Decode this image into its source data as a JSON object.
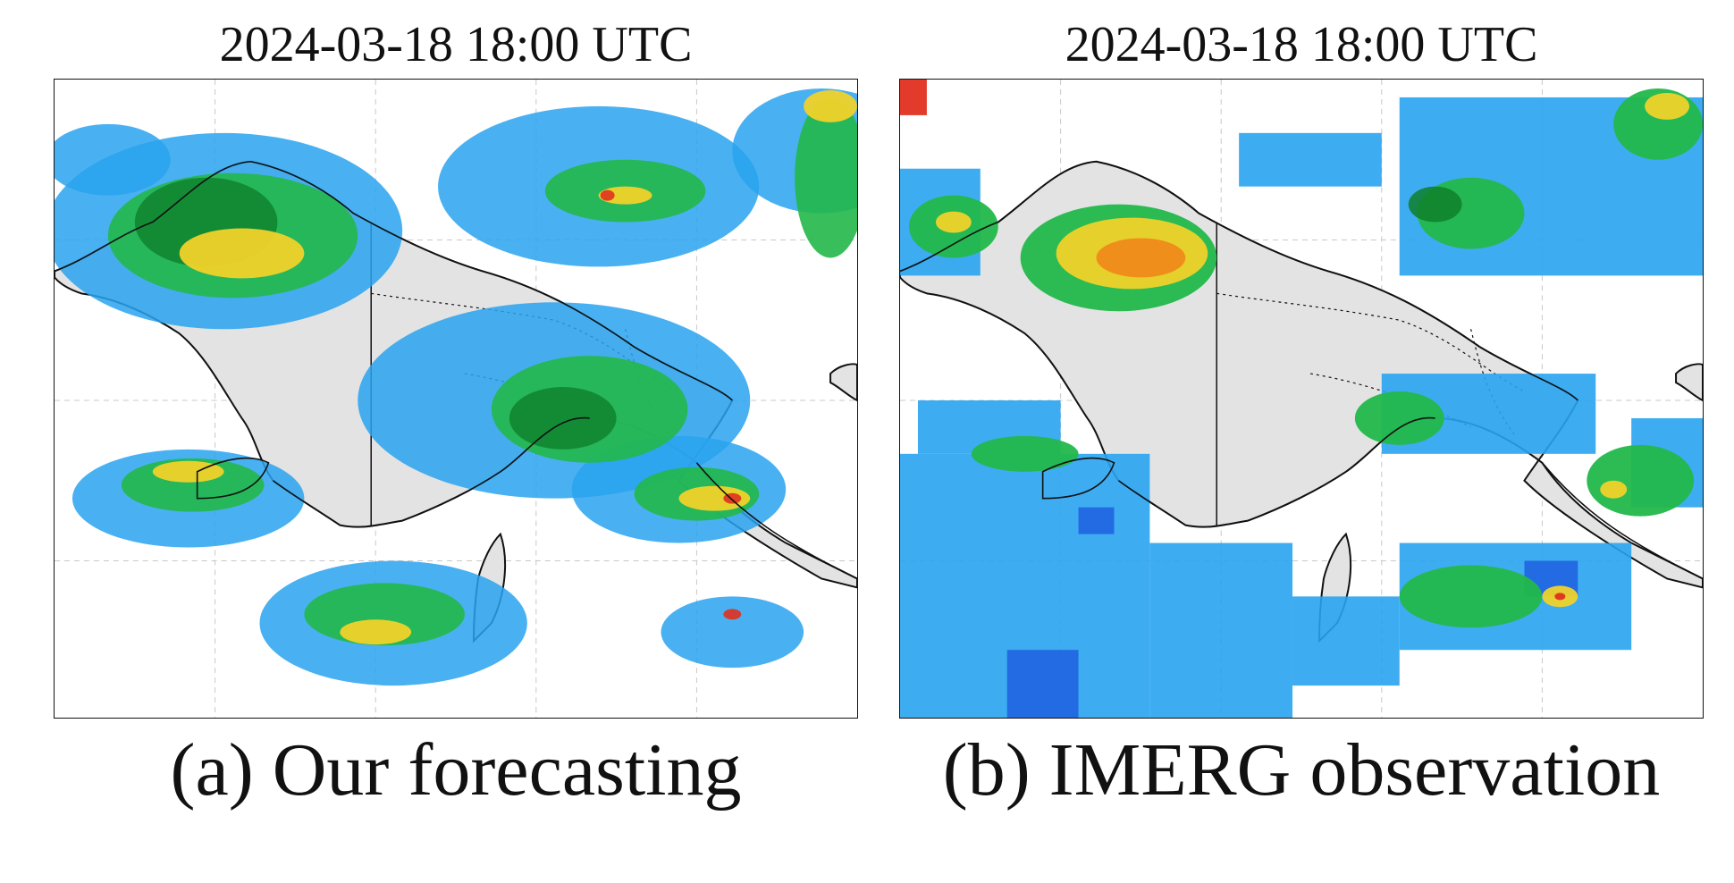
{
  "panels": [
    {
      "id": "a",
      "timestamp": "2024-03-18 18:00 UTC",
      "caption": "(a) Our forecasting"
    },
    {
      "id": "b",
      "timestamp": "2024-03-18 18:00 UTC",
      "caption": "(b) IMERG observation"
    }
  ],
  "colors": {
    "land": "#e3e3e3",
    "ocean": "#ffffff",
    "coastline": "#111111",
    "gridline": "#c8c8c8",
    "precip_scale": [
      "#8fd3ff",
      "#29a3ef",
      "#1f5fe0",
      "#22b84a",
      "#0f7f2a",
      "#f0d22a",
      "#f08a1a",
      "#e03020"
    ]
  }
}
